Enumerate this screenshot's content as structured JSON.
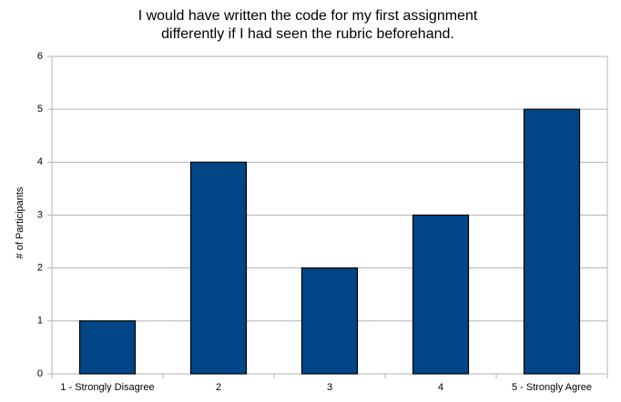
{
  "chart_data": {
    "type": "bar",
    "title": [
      "I would have written the code for my first assignment",
      "differently if I had seen the rubric beforehand."
    ],
    "y_label": "# of Participants",
    "categories": [
      "1 - Strongly Disagree",
      "2",
      "3",
      "4",
      "5 - Strongly Agree"
    ],
    "values": [
      1,
      4,
      2,
      3,
      5
    ],
    "color": "#004586",
    "ylim": [
      0,
      6
    ],
    "yticks": [
      0,
      1,
      2,
      3,
      4,
      5,
      6
    ],
    "grid": true
  }
}
